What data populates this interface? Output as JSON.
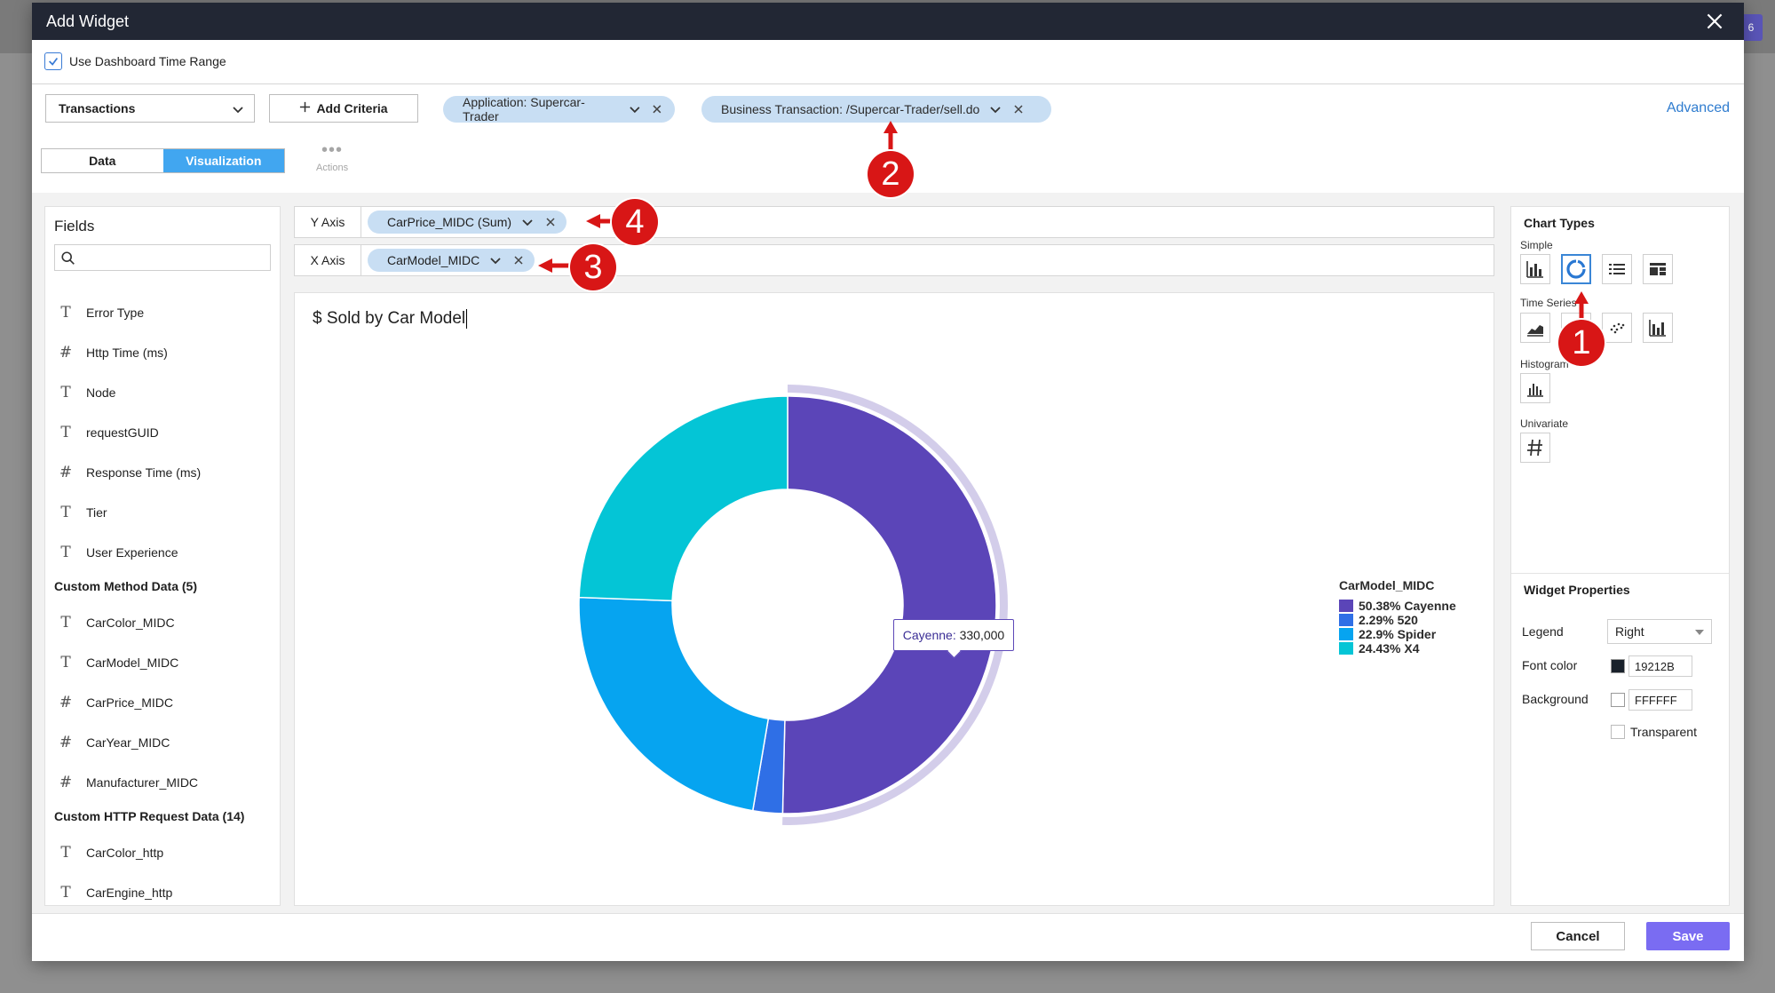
{
  "background": {
    "badge": "6"
  },
  "modal": {
    "title": "Add Widget"
  },
  "time_range": {
    "label": "Use Dashboard Time Range",
    "checked": true
  },
  "criteria": {
    "source_select": "Transactions",
    "add_criteria": "Add Criteria",
    "chips": [
      {
        "label": "Application: Supercar-Trader"
      },
      {
        "label": "Business Transaction: /Supercar-Trader/sell.do"
      }
    ],
    "advanced": "Advanced"
  },
  "tabs": {
    "data": "Data",
    "visualization": "Visualization",
    "active": "Visualization"
  },
  "actions": {
    "label": "Actions",
    "dots": "•••"
  },
  "fields": {
    "title": "Fields",
    "search_placeholder": "",
    "items": [
      {
        "type": "T",
        "label": "Error Type"
      },
      {
        "type": "#",
        "label": "Http Time (ms)"
      },
      {
        "type": "T",
        "label": "Node"
      },
      {
        "type": "T",
        "label": "requestGUID"
      },
      {
        "type": "#",
        "label": "Response Time (ms)"
      },
      {
        "type": "T",
        "label": "Tier"
      },
      {
        "type": "T",
        "label": "User Experience"
      }
    ],
    "group1": "Custom Method Data (5)",
    "group1_items": [
      {
        "type": "T",
        "label": "CarColor_MIDC"
      },
      {
        "type": "T",
        "label": "CarModel_MIDC"
      },
      {
        "type": "#",
        "label": "CarPrice_MIDC"
      },
      {
        "type": "#",
        "label": "CarYear_MIDC"
      },
      {
        "type": "#",
        "label": "Manufacturer_MIDC"
      }
    ],
    "group2": "Custom HTTP Request Data (14)",
    "group2_items": [
      {
        "type": "T",
        "label": "CarColor_http"
      },
      {
        "type": "T",
        "label": "CarEngine_http"
      }
    ]
  },
  "axes": {
    "y_label": "Y Axis",
    "y_chip": "CarPrice_MIDC (Sum)",
    "x_label": "X Axis",
    "x_chip": "CarModel_MIDC"
  },
  "chart_data": {
    "type": "pie",
    "variant": "donut",
    "title": "$ Sold by Car Model",
    "legend_title": "CarModel_MIDC",
    "legend_position": "right",
    "slices": [
      {
        "label": "Cayenne",
        "percent": 50.38,
        "legend": "50.38% Cayenne",
        "color": "#5b45b8"
      },
      {
        "label": "520",
        "percent": 2.29,
        "legend": "2.29% 520",
        "color": "#2f6fe6"
      },
      {
        "label": "Spider",
        "percent": 22.9,
        "legend": "22.9% Spider",
        "color": "#06a4f0"
      },
      {
        "label": "X4",
        "percent": 24.43,
        "legend": "24.43% X4",
        "color": "#04c5d6"
      }
    ],
    "highlighted": "Cayenne",
    "tooltip": {
      "key": "Cayenne:",
      "value": "330,000"
    }
  },
  "chart_types": {
    "title": "Chart Types",
    "simple": "Simple",
    "time_series": "Time Series",
    "histogram": "Histogram",
    "univariate": "Univariate",
    "selected": "donut"
  },
  "widget_properties": {
    "title": "Widget Properties",
    "legend_label": "Legend",
    "legend_value": "Right",
    "font_color_label": "Font color",
    "font_color_value": "19212B",
    "font_color_hex": "#19212B",
    "background_label": "Background",
    "background_value": "FFFFFF",
    "background_hex": "#FFFFFF",
    "transparent_label": "Transparent"
  },
  "footer": {
    "cancel": "Cancel",
    "save": "Save"
  },
  "annotations": [
    {
      "number": "1"
    },
    {
      "number": "2"
    },
    {
      "number": "3"
    },
    {
      "number": "4"
    }
  ]
}
